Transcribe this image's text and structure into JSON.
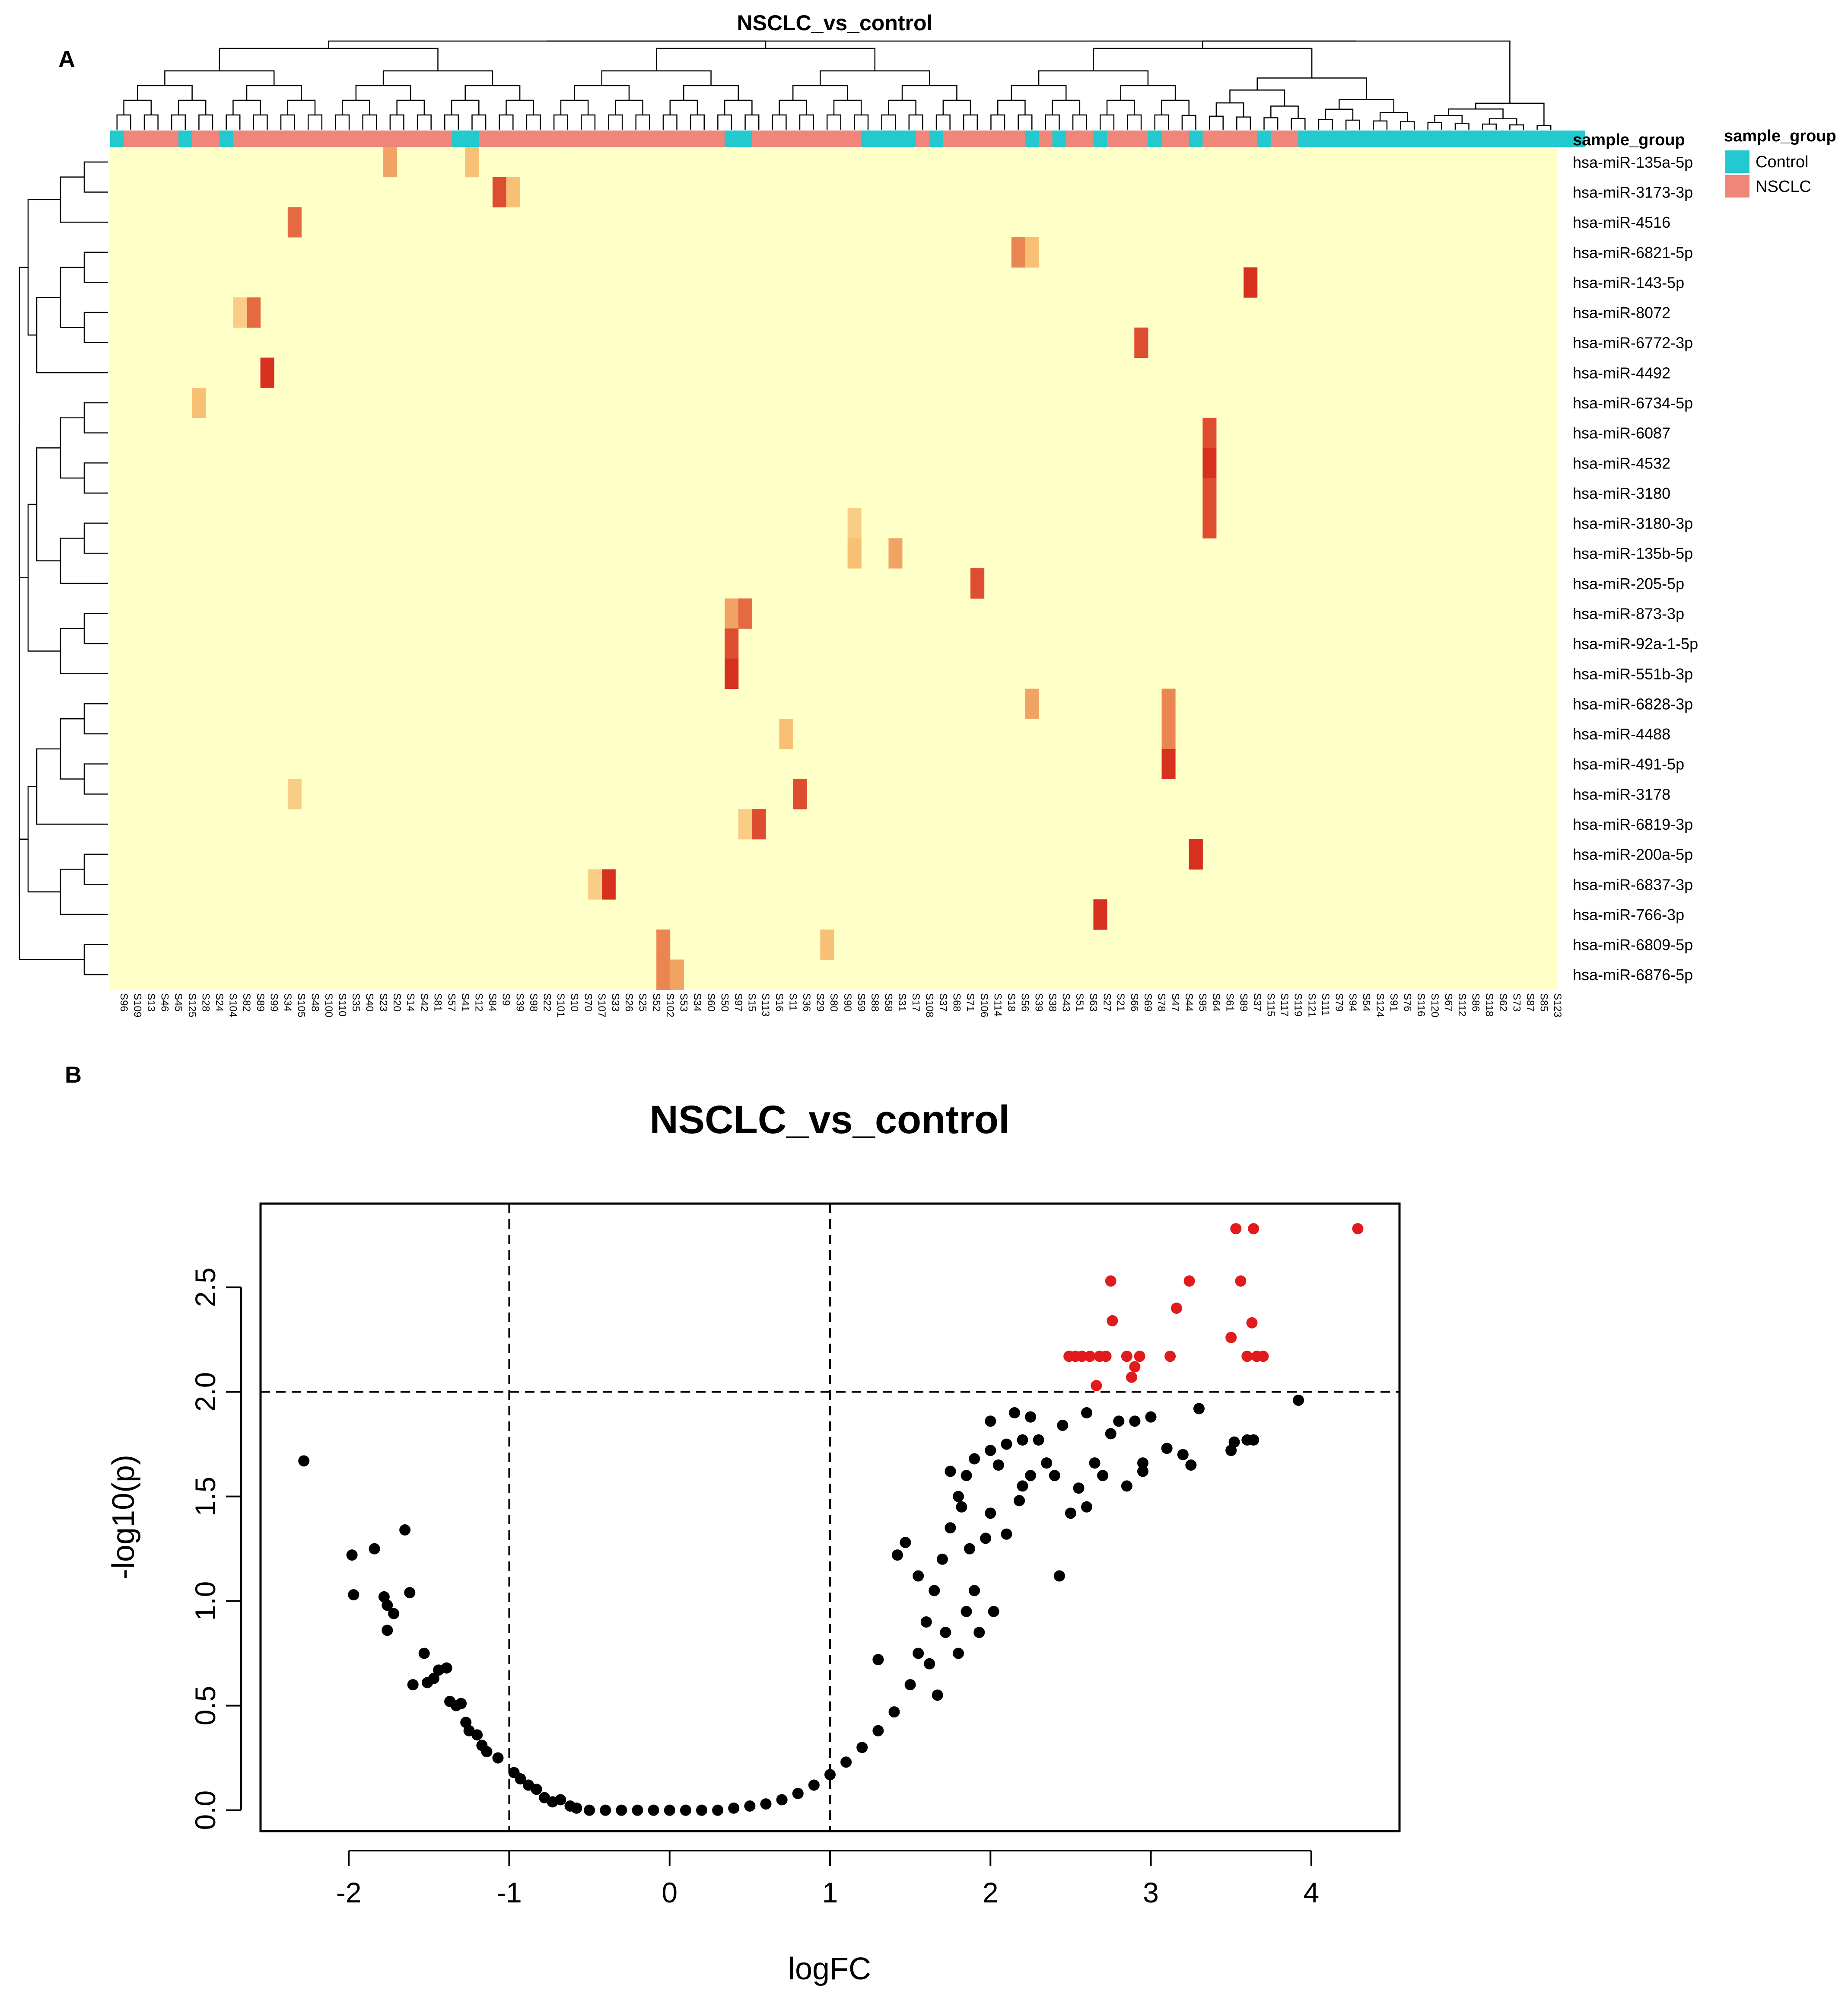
{
  "panel_a": {
    "label": "A",
    "title": "NSCLC_vs_control",
    "annotation_row_label": "sample_group",
    "legend_title": "sample_group",
    "legend_items": [
      {
        "label": "Control",
        "color": "#23C9CE"
      },
      {
        "label": "NSCLC",
        "color": "#F08579"
      }
    ]
  },
  "panel_b": {
    "label": "B",
    "title": "NSCLC_vs_control",
    "xlabel": "logFC",
    "ylabel": "-log10(p)",
    "xticks": [
      "-2",
      "-1",
      "0",
      "1",
      "2",
      "3",
      "4"
    ],
    "yticks": [
      "0.0",
      "0.5",
      "1.0",
      "1.5",
      "2.0",
      "2.5"
    ]
  },
  "colors": {
    "heat_low": "#FFFFC8",
    "heat_mid": "#F8C074",
    "heat_high": "#D7301F",
    "control": "#23C9CE",
    "nsclc": "#F08579",
    "significant": "#E31A1C",
    "nonsignificant": "#000000"
  },
  "chart_data": [
    {
      "type": "heatmap",
      "title": "NSCLC_vs_control",
      "rows": [
        "hsa-miR-135a-5p",
        "hsa-miR-3173-3p",
        "hsa-miR-4516",
        "hsa-miR-6821-5p",
        "hsa-miR-143-5p",
        "hsa-miR-8072",
        "hsa-miR-6772-3p",
        "hsa-miR-4492",
        "hsa-miR-6734-5p",
        "hsa-miR-6087",
        "hsa-miR-4532",
        "hsa-miR-3180",
        "hsa-miR-3180-3p",
        "hsa-miR-135b-5p",
        "hsa-miR-205-5p",
        "hsa-miR-873-3p",
        "hsa-miR-92a-1-5p",
        "hsa-miR-551b-3p",
        "hsa-miR-6828-3p",
        "hsa-miR-4488",
        "hsa-miR-491-5p",
        "hsa-miR-3178",
        "hsa-miR-6819-3p",
        "hsa-miR-200a-5p",
        "hsa-miR-6837-3p",
        "hsa-miR-766-3p",
        "hsa-miR-6809-5p",
        "hsa-miR-6876-5p"
      ],
      "columns": [
        "S96",
        "S109",
        "S13",
        "S46",
        "S45",
        "S125",
        "S28",
        "S24",
        "S104",
        "S82",
        "S89",
        "S99",
        "S34",
        "S105",
        "S48",
        "S100",
        "S110",
        "S35",
        "S40",
        "S23",
        "S20",
        "S14",
        "S42",
        "S81",
        "S57",
        "S41",
        "S12",
        "S84",
        "S9",
        "S39",
        "S98",
        "S22",
        "S101",
        "S10",
        "S70",
        "S107",
        "S33",
        "S26",
        "S25",
        "S52",
        "S102",
        "S53",
        "S34",
        "S60",
        "S50",
        "S97",
        "S15",
        "S113",
        "S16",
        "S11",
        "S36",
        "S29",
        "S80",
        "S90",
        "S59",
        "S88",
        "S58",
        "S31",
        "S17",
        "S108",
        "S37",
        "S68",
        "S71",
        "S106",
        "S114",
        "S18",
        "S56",
        "S39",
        "S38",
        "S43",
        "S51",
        "S63",
        "S27",
        "S21",
        "S66",
        "S69",
        "S78",
        "S47",
        "S44",
        "S95",
        "S64",
        "S61",
        "S89",
        "S37",
        "S115",
        "S117",
        "S119",
        "S121",
        "S111",
        "S79",
        "S94",
        "S54",
        "S124",
        "S91",
        "S76",
        "S116",
        "S120",
        "S67",
        "S112",
        "S86",
        "S118",
        "S62",
        "S73",
        "S87",
        "S85",
        "S123"
      ],
      "column_groups": [
        "Control",
        "NSCLC",
        "NSCLC",
        "NSCLC",
        "NSCLC",
        "Control",
        "NSCLC",
        "NSCLC",
        "Control",
        "NSCLC",
        "NSCLC",
        "NSCLC",
        "NSCLC",
        "NSCLC",
        "NSCLC",
        "NSCLC",
        "NSCLC",
        "NSCLC",
        "NSCLC",
        "NSCLC",
        "NSCLC",
        "NSCLC",
        "NSCLC",
        "NSCLC",
        "NSCLC",
        "Control",
        "Control",
        "NSCLC",
        "NSCLC",
        "NSCLC",
        "NSCLC",
        "NSCLC",
        "NSCLC",
        "NSCLC",
        "NSCLC",
        "NSCLC",
        "NSCLC",
        "NSCLC",
        "NSCLC",
        "NSCLC",
        "NSCLC",
        "NSCLC",
        "NSCLC",
        "NSCLC",
        "NSCLC",
        "Control",
        "Control",
        "NSCLC",
        "NSCLC",
        "NSCLC",
        "NSCLC",
        "NSCLC",
        "NSCLC",
        "NSCLC",
        "NSCLC",
        "Control",
        "Control",
        "Control",
        "Control",
        "NSCLC",
        "Control",
        "NSCLC",
        "NSCLC",
        "NSCLC",
        "NSCLC",
        "NSCLC",
        "NSCLC",
        "Control",
        "NSCLC",
        "Control",
        "NSCLC",
        "NSCLC",
        "Control",
        "NSCLC",
        "NSCLC",
        "NSCLC",
        "Control",
        "NSCLC",
        "NSCLC",
        "Control",
        "NSCLC",
        "NSCLC",
        "NSCLC",
        "NSCLC",
        "Control",
        "NSCLC",
        "NSCLC",
        "Control",
        "Control",
        "Control",
        "Control",
        "Control",
        "Control",
        "Control",
        "Control",
        "Control",
        "Control",
        "Control",
        "Control",
        "Control",
        "Control",
        "Control",
        "Control",
        "Control",
        "Control",
        "Control",
        "Control",
        "Control"
      ],
      "high_cells": [
        {
          "row": "hsa-miR-135a-5p",
          "column_index": 20,
          "value": 0.6
        },
        {
          "row": "hsa-miR-135a-5p",
          "column_index": 26,
          "value": 0.5
        },
        {
          "row": "hsa-miR-3173-3p",
          "column_index": 28,
          "value": 0.9
        },
        {
          "row": "hsa-miR-3173-3p",
          "column_index": 29,
          "value": 0.5
        },
        {
          "row": "hsa-miR-4516",
          "column_index": 13,
          "value": 0.8
        },
        {
          "row": "hsa-miR-6821-5p",
          "column_index": 66,
          "value": 0.7
        },
        {
          "row": "hsa-miR-6821-5p",
          "column_index": 67,
          "value": 0.5
        },
        {
          "row": "hsa-miR-143-5p",
          "column_index": 83,
          "value": 1.0
        },
        {
          "row": "hsa-miR-8072",
          "column_index": 10,
          "value": 0.8
        },
        {
          "row": "hsa-miR-8072",
          "column_index": 9,
          "value": 0.4
        },
        {
          "row": "hsa-miR-6772-3p",
          "column_index": 75,
          "value": 0.9
        },
        {
          "row": "hsa-miR-4492",
          "column_index": 11,
          "value": 1.0
        },
        {
          "row": "hsa-miR-6734-5p",
          "column_index": 6,
          "value": 0.5
        },
        {
          "row": "hsa-miR-6087",
          "column_index": 80,
          "value": 0.9
        },
        {
          "row": "hsa-miR-4532",
          "column_index": 80,
          "value": 1.0
        },
        {
          "row": "hsa-miR-3180",
          "column_index": 80,
          "value": 0.9
        },
        {
          "row": "hsa-miR-3180-3p",
          "column_index": 80,
          "value": 0.9
        },
        {
          "row": "hsa-miR-3180-3p",
          "column_index": 54,
          "value": 0.4
        },
        {
          "row": "hsa-miR-135b-5p",
          "column_index": 54,
          "value": 0.5
        },
        {
          "row": "hsa-miR-135b-5p",
          "column_index": 57,
          "value": 0.6
        },
        {
          "row": "hsa-miR-205-5p",
          "column_index": 63,
          "value": 0.9
        },
        {
          "row": "hsa-miR-873-3p",
          "column_index": 45,
          "value": 0.6
        },
        {
          "row": "hsa-miR-873-3p",
          "column_index": 46,
          "value": 0.8
        },
        {
          "row": "hsa-miR-92a-1-5p",
          "column_index": 45,
          "value": 0.9
        },
        {
          "row": "hsa-miR-551b-3p",
          "column_index": 45,
          "value": 1.0
        },
        {
          "row": "hsa-miR-6828-3p",
          "column_index": 67,
          "value": 0.6
        },
        {
          "row": "hsa-miR-6828-3p",
          "column_index": 77,
          "value": 0.7
        },
        {
          "row": "hsa-miR-4488",
          "column_index": 77,
          "value": 0.7
        },
        {
          "row": "hsa-miR-4488",
          "column_index": 49,
          "value": 0.5
        },
        {
          "row": "hsa-miR-491-5p",
          "column_index": 77,
          "value": 1.0
        },
        {
          "row": "hsa-miR-3178",
          "column_index": 50,
          "value": 0.9
        },
        {
          "row": "hsa-miR-3178",
          "column_index": 13,
          "value": 0.4
        },
        {
          "row": "hsa-miR-6819-3p",
          "column_index": 47,
          "value": 0.9
        },
        {
          "row": "hsa-miR-6819-3p",
          "column_index": 46,
          "value": 0.4
        },
        {
          "row": "hsa-miR-200a-5p",
          "column_index": 79,
          "value": 1.0
        },
        {
          "row": "hsa-miR-6837-3p",
          "column_index": 36,
          "value": 1.0
        },
        {
          "row": "hsa-miR-6837-3p",
          "column_index": 35,
          "value": 0.4
        },
        {
          "row": "hsa-miR-766-3p",
          "column_index": 72,
          "value": 1.0
        },
        {
          "row": "hsa-miR-6809-5p",
          "column_index": 40,
          "value": 0.7
        },
        {
          "row": "hsa-miR-6809-5p",
          "column_index": 52,
          "value": 0.5
        },
        {
          "row": "hsa-miR-6876-5p",
          "column_index": 40,
          "value": 0.7
        },
        {
          "row": "hsa-miR-6876-5p",
          "column_index": 41,
          "value": 0.6
        }
      ]
    },
    {
      "type": "scatter",
      "title": "NSCLC_vs_control",
      "xlabel": "logFC",
      "ylabel": "-log10(p)",
      "xlim": [
        -2.55,
        4.55
      ],
      "ylim": [
        -0.1,
        2.9
      ],
      "thresholds": {
        "logFC": [
          -1,
          1
        ],
        "neg_log10_p": 2.0
      },
      "significant_points": [
        [
          2.49,
          2.17
        ],
        [
          2.53,
          2.17
        ],
        [
          2.57,
          2.17
        ],
        [
          2.62,
          2.17
        ],
        [
          2.66,
          2.03
        ],
        [
          2.68,
          2.17
        ],
        [
          2.72,
          2.17
        ],
        [
          2.75,
          2.53
        ],
        [
          2.76,
          2.34
        ],
        [
          2.85,
          2.17
        ],
        [
          2.88,
          2.07
        ],
        [
          2.9,
          2.12
        ],
        [
          2.93,
          2.17
        ],
        [
          3.12,
          2.17
        ],
        [
          3.16,
          2.4
        ],
        [
          3.24,
          2.53
        ],
        [
          3.5,
          2.26
        ],
        [
          3.53,
          2.78
        ],
        [
          3.56,
          2.53
        ],
        [
          3.6,
          2.17
        ],
        [
          3.63,
          2.33
        ],
        [
          3.64,
          2.78
        ],
        [
          3.66,
          2.17
        ],
        [
          3.7,
          2.17
        ],
        [
          4.29,
          2.78
        ]
      ],
      "nonsignificant_points": [
        [
          -2.28,
          1.67
        ],
        [
          -1.98,
          1.22
        ],
        [
          -1.97,
          1.03
        ],
        [
          -1.84,
          1.25
        ],
        [
          -1.78,
          1.02
        ],
        [
          -1.76,
          0.98
        ],
        [
          -1.76,
          0.86
        ],
        [
          -1.72,
          0.94
        ],
        [
          -1.65,
          1.34
        ],
        [
          -1.62,
          1.04
        ],
        [
          -1.6,
          0.6
        ],
        [
          -1.53,
          0.75
        ],
        [
          -1.51,
          0.61
        ],
        [
          -1.47,
          0.63
        ],
        [
          -1.44,
          0.67
        ],
        [
          -1.39,
          0.68
        ],
        [
          -1.37,
          0.52
        ],
        [
          -1.33,
          0.5
        ],
        [
          -1.3,
          0.51
        ],
        [
          -1.27,
          0.42
        ],
        [
          -1.25,
          0.38
        ],
        [
          -1.2,
          0.36
        ],
        [
          -1.17,
          0.31
        ],
        [
          -1.14,
          0.28
        ],
        [
          -1.07,
          0.25
        ],
        [
          -0.97,
          0.18
        ],
        [
          -0.93,
          0.15
        ],
        [
          -0.88,
          0.12
        ],
        [
          -0.83,
          0.1
        ],
        [
          -0.78,
          0.06
        ],
        [
          -0.73,
          0.04
        ],
        [
          -0.68,
          0.05
        ],
        [
          -0.62,
          0.02
        ],
        [
          -0.58,
          0.01
        ],
        [
          -0.5,
          0.0
        ],
        [
          -0.4,
          0.0
        ],
        [
          -0.3,
          0.0
        ],
        [
          -0.2,
          0.0
        ],
        [
          -0.1,
          0.0
        ],
        [
          0.0,
          0.0
        ],
        [
          0.1,
          0.0
        ],
        [
          0.2,
          0.0
        ],
        [
          0.3,
          0.0
        ],
        [
          0.4,
          0.01
        ],
        [
          0.5,
          0.02
        ],
        [
          0.6,
          0.03
        ],
        [
          0.7,
          0.05
        ],
        [
          0.8,
          0.08
        ],
        [
          0.9,
          0.12
        ],
        [
          1.0,
          0.17
        ],
        [
          1.1,
          0.23
        ],
        [
          1.2,
          0.3
        ],
        [
          1.3,
          0.38
        ],
        [
          1.4,
          0.47
        ],
        [
          1.5,
          0.6
        ],
        [
          1.55,
          0.75
        ],
        [
          1.6,
          0.9
        ],
        [
          1.65,
          1.05
        ],
        [
          1.7,
          1.2
        ],
        [
          1.75,
          1.35
        ],
        [
          1.8,
          1.5
        ],
        [
          1.85,
          1.6
        ],
        [
          1.9,
          1.68
        ],
        [
          2.0,
          1.72
        ],
        [
          2.1,
          1.75
        ],
        [
          2.2,
          1.77
        ],
        [
          2.3,
          1.77
        ],
        [
          1.3,
          0.72
        ],
        [
          1.42,
          1.22
        ],
        [
          1.47,
          1.28
        ],
        [
          1.55,
          1.12
        ],
        [
          1.62,
          0.7
        ],
        [
          1.67,
          0.55
        ],
        [
          1.72,
          0.85
        ],
        [
          1.8,
          0.75
        ],
        [
          1.85,
          0.95
        ],
        [
          1.9,
          1.05
        ],
        [
          1.97,
          1.3
        ],
        [
          2.0,
          1.42
        ],
        [
          2.02,
          0.95
        ],
        [
          2.1,
          1.32
        ],
        [
          2.18,
          1.48
        ],
        [
          2.2,
          1.55
        ],
        [
          2.25,
          1.6
        ],
        [
          2.4,
          1.6
        ],
        [
          2.43,
          1.12
        ],
        [
          2.5,
          1.42
        ],
        [
          2.55,
          1.54
        ],
        [
          2.6,
          1.45
        ],
        [
          2.7,
          1.6
        ],
        [
          2.75,
          1.8
        ],
        [
          2.85,
          1.55
        ],
        [
          2.95,
          1.62
        ],
        [
          3.0,
          1.88
        ],
        [
          3.1,
          1.73
        ],
        [
          3.2,
          1.7
        ],
        [
          3.25,
          1.65
        ],
        [
          3.3,
          1.92
        ],
        [
          3.5,
          1.72
        ],
        [
          3.52,
          1.76
        ],
        [
          3.6,
          1.77
        ],
        [
          3.64,
          1.77
        ],
        [
          3.92,
          1.96
        ],
        [
          2.0,
          1.86
        ],
        [
          2.15,
          1.9
        ],
        [
          2.25,
          1.88
        ],
        [
          2.45,
          1.84
        ],
        [
          2.6,
          1.9
        ],
        [
          2.8,
          1.86
        ],
        [
          2.9,
          1.86
        ],
        [
          2.05,
          1.65
        ],
        [
          2.35,
          1.66
        ],
        [
          2.65,
          1.66
        ],
        [
          2.95,
          1.66
        ],
        [
          1.75,
          1.62
        ],
        [
          1.82,
          1.45
        ],
        [
          1.87,
          1.25
        ],
        [
          1.93,
          0.85
        ]
      ]
    }
  ]
}
